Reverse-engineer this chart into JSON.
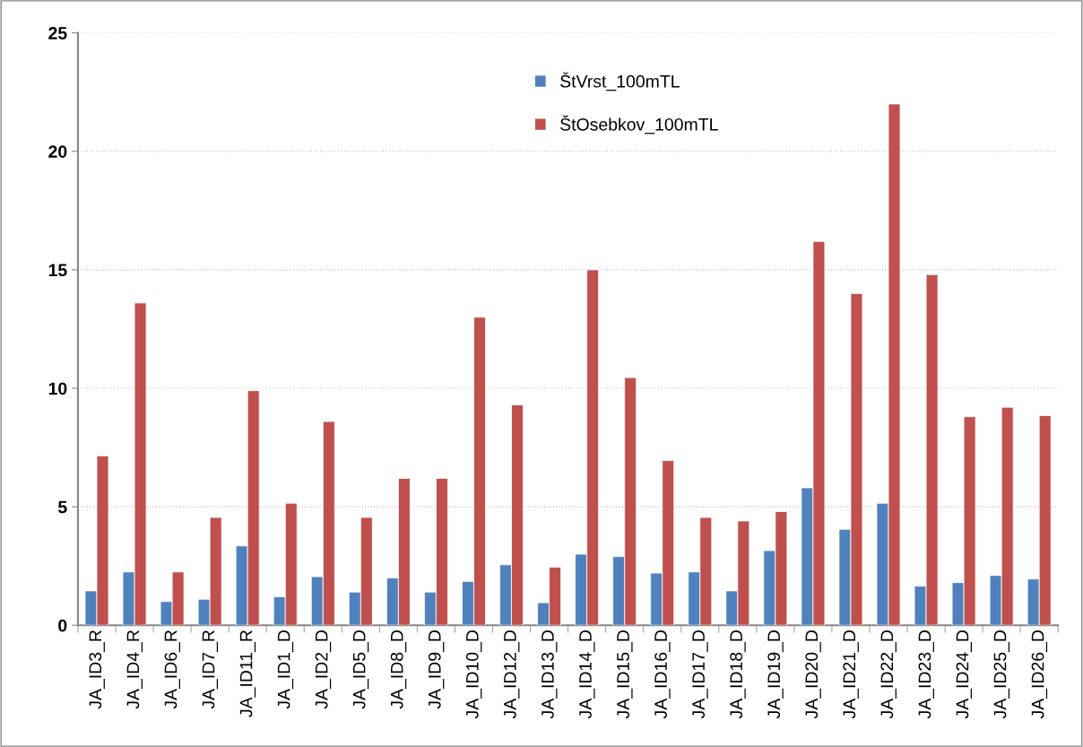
{
  "chart_data": {
    "type": "bar",
    "categories": [
      "JA_ID3_R",
      "JA_ID4_R",
      "JA_ID6_R",
      "JA_ID7_R",
      "JA_ID11_R",
      "JA_ID1_D",
      "JA_ID2_D",
      "JA_ID5_D",
      "JA_ID8_D",
      "JA_ID9_D",
      "JA_ID10_D",
      "JA_ID12_D",
      "JA_ID13_D",
      "JA_ID14_D",
      "JA_ID15_D",
      "JA_ID16_D",
      "JA_ID17_D",
      "JA_ID18_D",
      "JA_ID19_D",
      "JA_ID20_D",
      "JA_ID21_D",
      "JA_ID22_D",
      "JA_ID23_D",
      "JA_ID24_D",
      "JA_ID25_D",
      "JA_ID26_D"
    ],
    "series": [
      {
        "name": "ŠtVrst_100mTL",
        "color": "#4f81bd",
        "values": [
          1.45,
          2.25,
          1.0,
          1.1,
          3.35,
          1.2,
          2.05,
          1.4,
          2.0,
          1.4,
          1.85,
          2.55,
          0.95,
          3.0,
          2.9,
          2.2,
          2.25,
          1.45,
          3.15,
          5.8,
          4.05,
          5.15,
          1.65,
          1.8,
          2.1,
          1.95
        ]
      },
      {
        "name": "ŠtOsebkov_100mTL",
        "color": "#c0504d",
        "values": [
          7.15,
          13.6,
          2.25,
          4.55,
          9.9,
          5.15,
          8.6,
          4.55,
          6.2,
          6.2,
          13.0,
          9.3,
          2.45,
          15.0,
          10.45,
          6.95,
          4.55,
          4.4,
          4.8,
          16.2,
          14.0,
          22.0,
          14.8,
          8.8,
          9.2,
          8.85
        ]
      }
    ],
    "ylim": [
      0,
      25
    ],
    "yticks": [
      0,
      5,
      10,
      15,
      20,
      25
    ],
    "grid": "y",
    "legend": "top"
  }
}
